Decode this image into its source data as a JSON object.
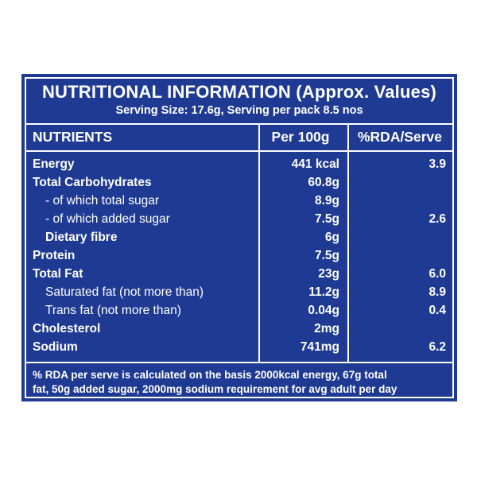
{
  "header": {
    "title": "NUTRITIONAL INFORMATION (Approx. Values)",
    "subtitle": "Serving Size: 17.6g, Serving per pack 8.5 nos"
  },
  "columns": {
    "nutrients": "NUTRIENTS",
    "per100g": "Per 100g",
    "rda": "%RDA/Serve"
  },
  "rows": [
    {
      "name": "Energy",
      "per100g": "441 kcal",
      "rda": "3.9"
    },
    {
      "name": "Total Carbohydrates",
      "per100g": "60.8g",
      "rda": ""
    },
    {
      "name": "- of which total sugar",
      "per100g": "8.9g",
      "rda": ""
    },
    {
      "name": "- of which added sugar",
      "per100g": "7.5g",
      "rda": "2.6"
    },
    {
      "name": "Dietary fibre",
      "per100g": "6g",
      "rda": ""
    },
    {
      "name": "Protein",
      "per100g": "7.5g",
      "rda": ""
    },
    {
      "name": "Total Fat",
      "per100g": "23g",
      "rda": "6.0"
    },
    {
      "name": "Saturated fat (not more than)",
      "per100g": "11.2g",
      "rda": "8.9"
    },
    {
      "name": "Trans fat (not more than)",
      "per100g": "0.04g",
      "rda": "0.4"
    },
    {
      "name": "Cholesterol",
      "per100g": "2mg",
      "rda": ""
    },
    {
      "name": "Sodium",
      "per100g": "741mg",
      "rda": "6.2"
    }
  ],
  "footnote": {
    "line1": "% RDA per serve is calculated on the basis 2000kcal energy, 67g total",
    "line2": "fat, 50g added sugar, 2000mg sodium requirement for avg adult per day"
  },
  "colors": {
    "background": "#1f3a93",
    "text": "#ffffff"
  }
}
